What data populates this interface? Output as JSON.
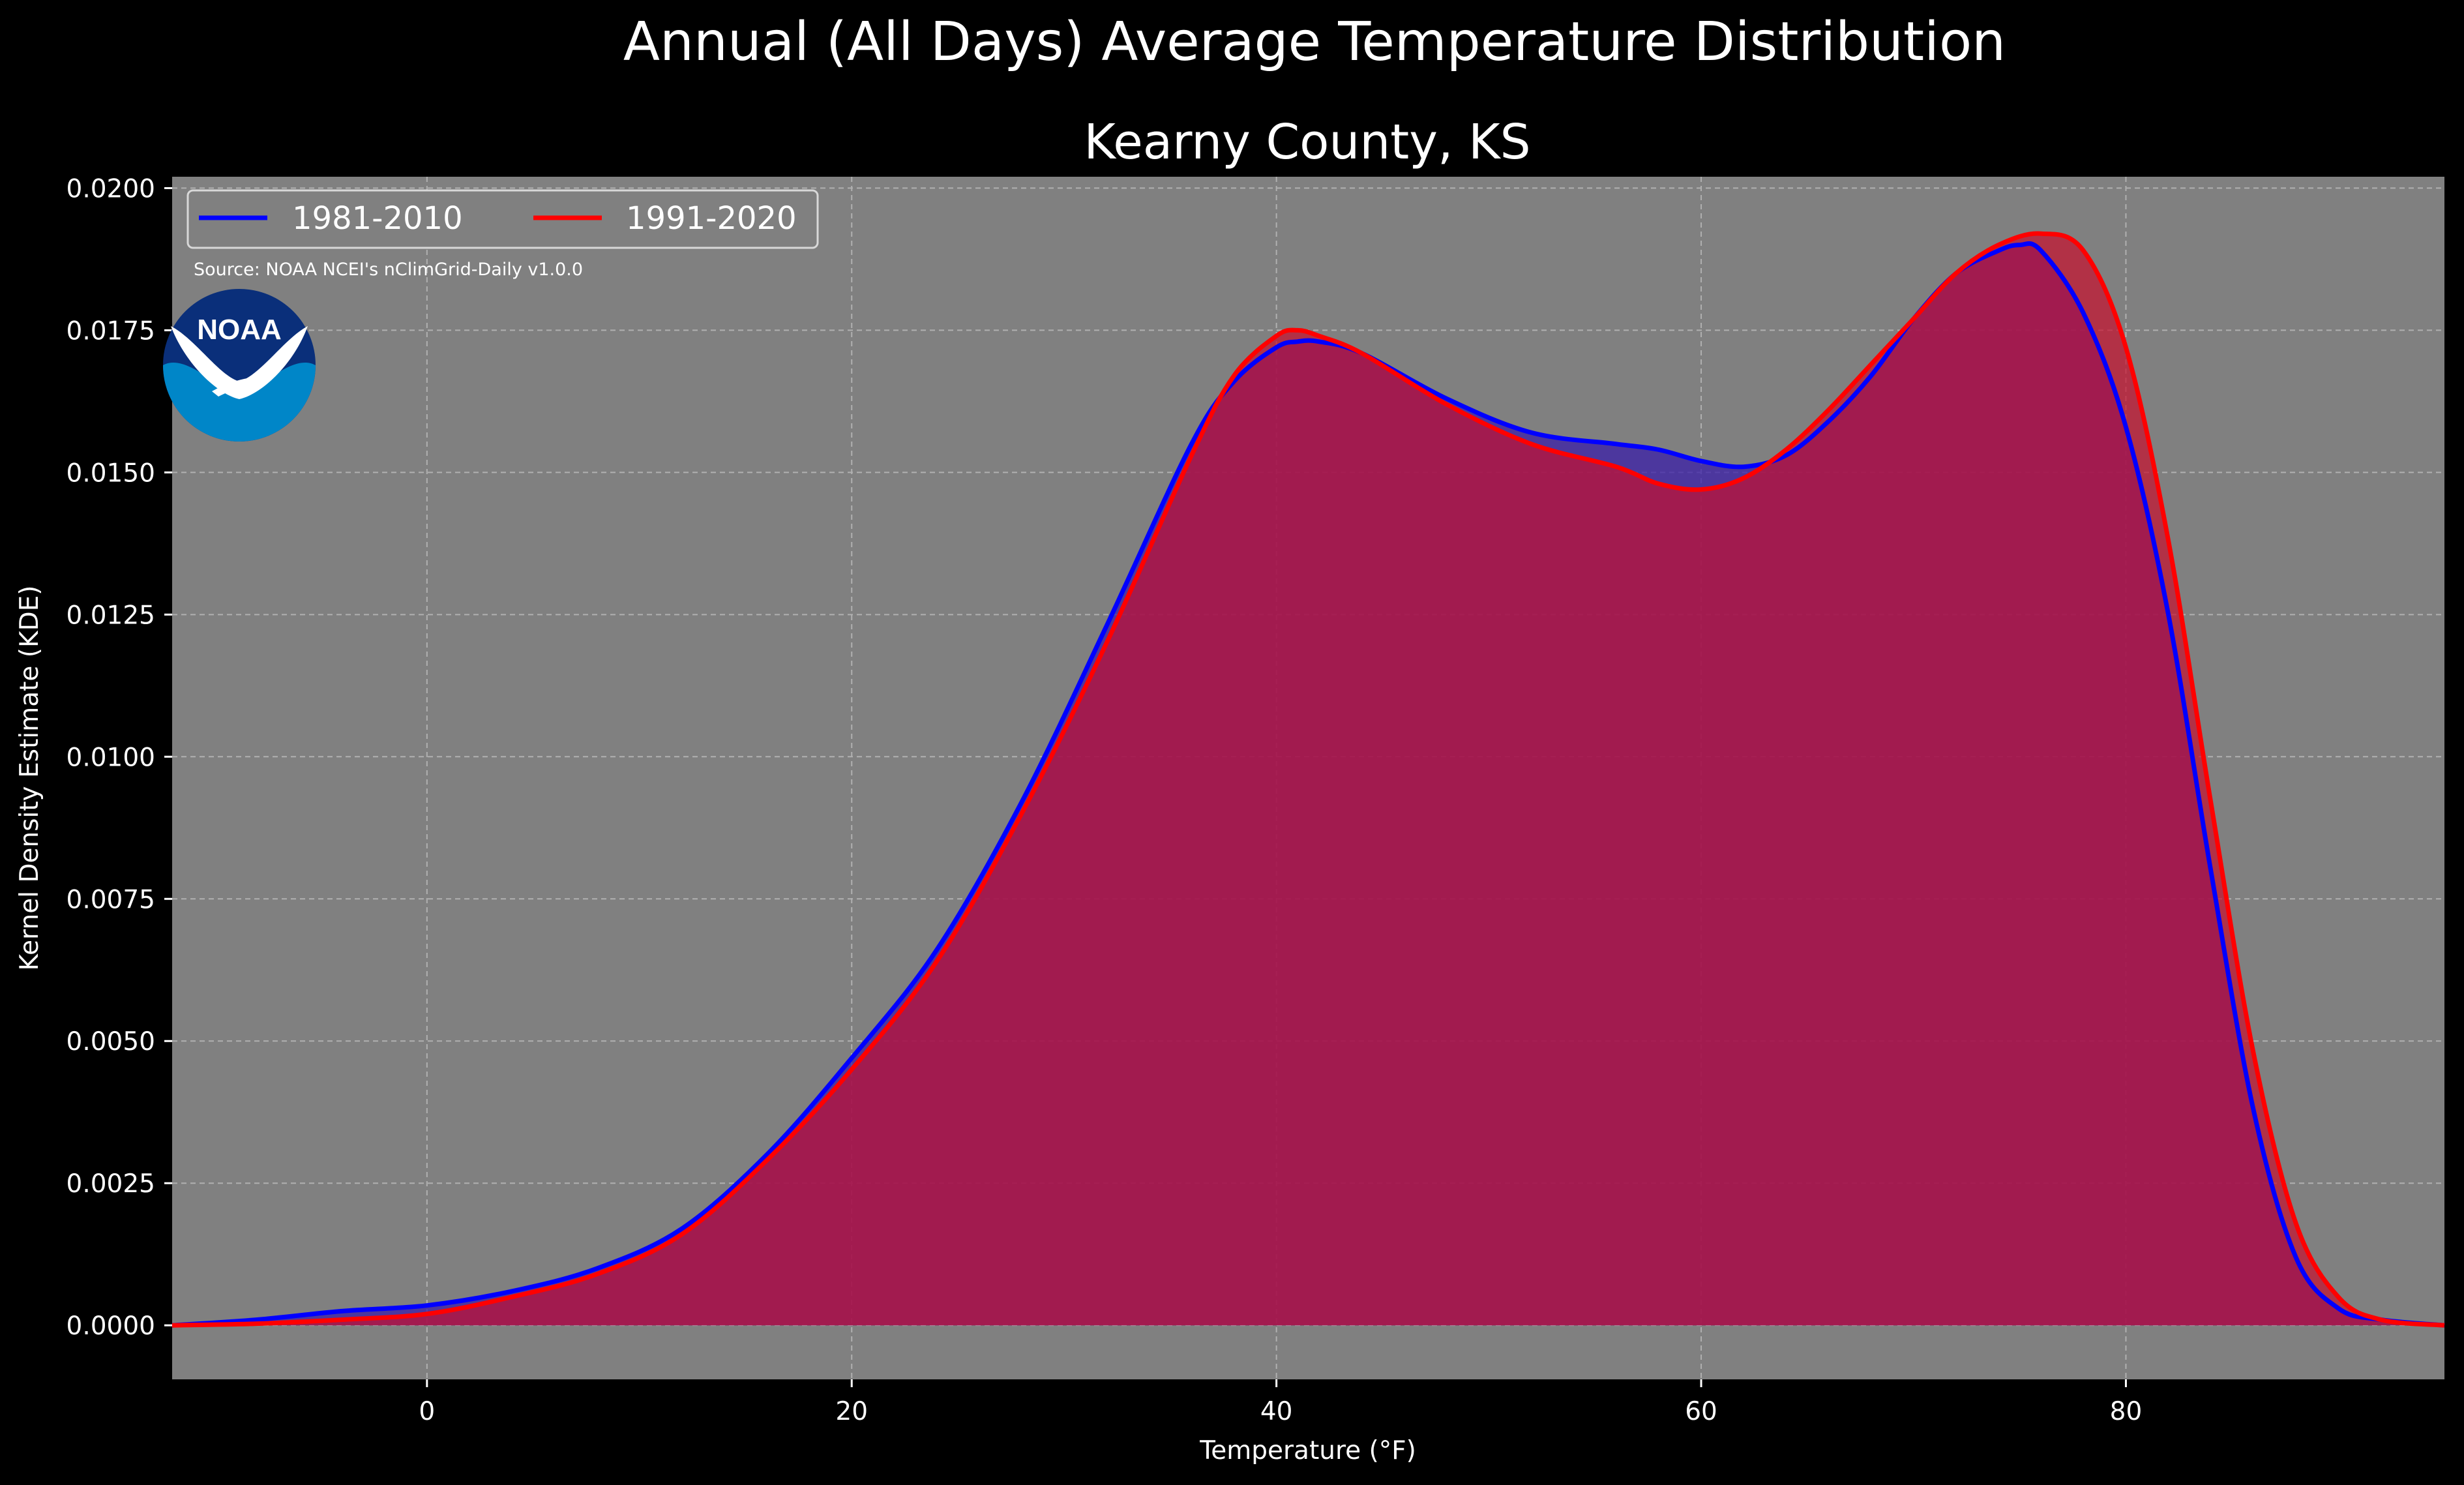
{
  "title": "Annual (All Days) Average Temperature Distribution",
  "chart_data": {
    "type": "area",
    "title": "Kearny County, KS",
    "xlabel": "Temperature (°F)",
    "ylabel": "Kernel Density Estimate (KDE)",
    "source": "Source: NOAA NCEI's nClimGrid-Daily v1.0.0",
    "xlim": [
      -12,
      95
    ],
    "ylim": [
      -0.00095,
      0.0202
    ],
    "xticks": [
      0,
      20,
      40,
      60,
      80
    ],
    "xtick_labels": [
      "0",
      "20",
      "40",
      "60",
      "80"
    ],
    "yticks": [
      0,
      0.0025,
      0.005,
      0.0075,
      0.01,
      0.0125,
      0.015,
      0.0175,
      0.02
    ],
    "ytick_labels": [
      "0.0000",
      "0.0025",
      "0.0050",
      "0.0075",
      "0.0100",
      "0.0125",
      "0.0150",
      "0.0175",
      "0.0200"
    ],
    "grid": true,
    "legend_position": "top-left",
    "background": "#808080",
    "series": [
      {
        "name": "1981-2010",
        "color": "#0000ff",
        "fill": "#3b1fa8",
        "x": [
          -12,
          -8,
          -4,
          0,
          4,
          8,
          12,
          16,
          20,
          24,
          28,
          32,
          36,
          38,
          40,
          41,
          42,
          44,
          48,
          52,
          56,
          58,
          60,
          62,
          64,
          66,
          68,
          70,
          72,
          74,
          75,
          76,
          78,
          80,
          82,
          84,
          86,
          88,
          90,
          92,
          95
        ],
        "y": [
          0.0,
          0.0001,
          0.00025,
          0.00035,
          0.0006,
          0.001,
          0.0017,
          0.003,
          0.0047,
          0.0066,
          0.0092,
          0.0123,
          0.0155,
          0.0166,
          0.0172,
          0.0173,
          0.0173,
          0.0171,
          0.0163,
          0.0157,
          0.0155,
          0.0154,
          0.0152,
          0.0151,
          0.0153,
          0.0159,
          0.0167,
          0.0177,
          0.0185,
          0.0189,
          0.019,
          0.0189,
          0.0178,
          0.0158,
          0.0125,
          0.008,
          0.0038,
          0.0012,
          0.0003,
          0.0001,
          0.0
        ]
      },
      {
        "name": "1991-2020",
        "color": "#ff0000",
        "fill": "#c8102e",
        "x": [
          -12,
          -8,
          -4,
          0,
          4,
          8,
          12,
          16,
          20,
          24,
          28,
          32,
          36,
          38,
          40,
          41,
          42,
          44,
          48,
          52,
          56,
          58,
          60,
          62,
          64,
          66,
          68,
          70,
          72,
          74,
          76,
          78,
          80,
          82,
          84,
          86,
          88,
          90,
          92,
          95
        ],
        "y": [
          0.0,
          3e-05,
          0.0001,
          0.0002,
          0.0005,
          0.0009,
          0.0016,
          0.0029,
          0.0045,
          0.0064,
          0.009,
          0.012,
          0.0153,
          0.0167,
          0.0174,
          0.0175,
          0.0174,
          0.0171,
          0.0162,
          0.0155,
          0.0151,
          0.0148,
          0.0147,
          0.0149,
          0.0154,
          0.0161,
          0.0169,
          0.0177,
          0.0185,
          0.019,
          0.0192,
          0.0189,
          0.0172,
          0.0138,
          0.0092,
          0.0048,
          0.0018,
          0.0005,
          0.0001,
          0.0
        ]
      }
    ]
  },
  "logo": {
    "text": "NOAA",
    "outer_color": "#0a2f7a",
    "inner_color": "#0086c8"
  }
}
